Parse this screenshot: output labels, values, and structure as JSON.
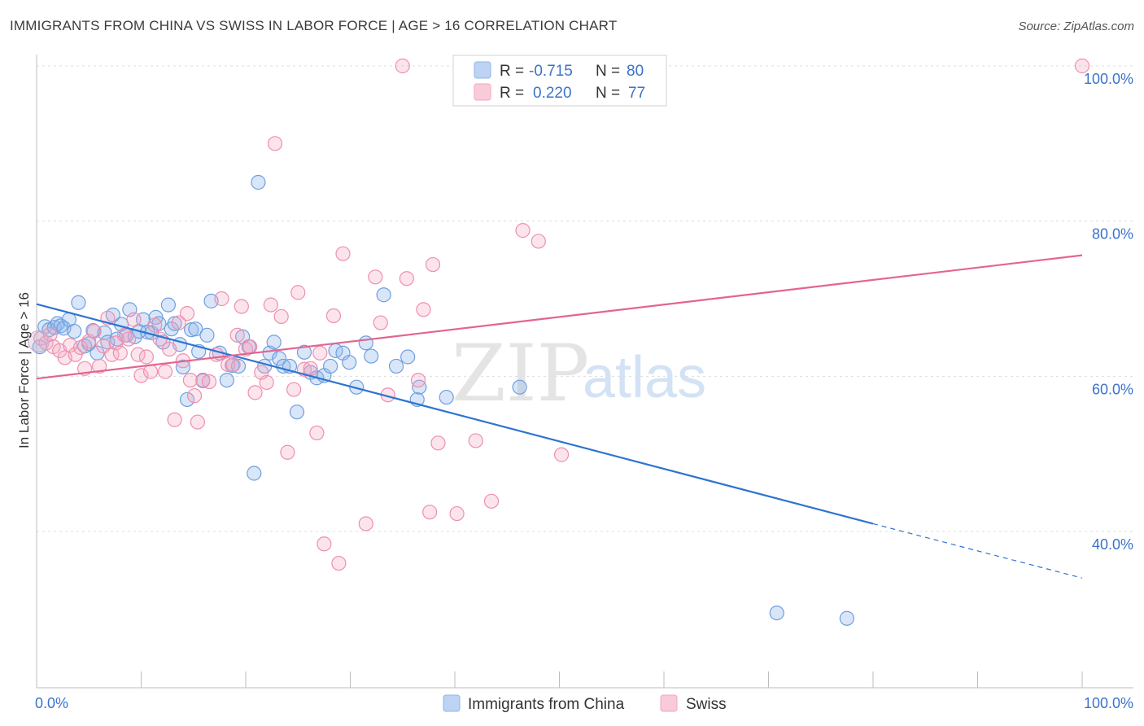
{
  "title": "IMMIGRANTS FROM CHINA VS SWISS IN LABOR FORCE | AGE > 16 CORRELATION CHART",
  "source": "Source: ZipAtlas.com",
  "watermark": {
    "zip": "ZIP",
    "atlas": "atlas"
  },
  "legend": {
    "rows": [
      {
        "r_label": "R =",
        "r_value": "-0.715",
        "n_label": "N =",
        "n_value": "80",
        "color": "#8fb6ea"
      },
      {
        "r_label": "R =",
        "r_value": "0.220",
        "n_label": "N =",
        "n_value": "77",
        "color": "#f4a6bf"
      }
    ]
  },
  "chart_data": {
    "type": "scatter",
    "xlabel": "",
    "ylabel": "In Labor Force | Age > 16",
    "xlim": [
      0,
      100
    ],
    "ylim": [
      20,
      101
    ],
    "x_tick_labels": [
      "0.0%",
      "100.0%"
    ],
    "y_ticks": [
      40,
      60,
      80,
      100
    ],
    "y_tick_labels": [
      "40.0%",
      "60.0%",
      "80.0%",
      "100.0%"
    ],
    "grid": true,
    "legend_position": "top-center",
    "series": [
      {
        "name": "Immigrants from China",
        "color": "#8fb6ea",
        "line_color": "#2f74d0",
        "trend": {
          "x0": 0,
          "y0": 69.3,
          "x1": 80,
          "y1": 41.0,
          "dashed_to_x": 100,
          "dashed_to_y": 34.0
        },
        "points": [
          [
            0.3,
            63.8
          ],
          [
            0.8,
            66.4
          ],
          [
            1.2,
            66.0
          ],
          [
            1.7,
            66.3
          ],
          [
            2.0,
            66.8
          ],
          [
            2.3,
            66.5
          ],
          [
            2.6,
            66.2
          ],
          [
            3.1,
            67.3
          ],
          [
            3.6,
            65.8
          ],
          [
            4.0,
            69.5
          ],
          [
            4.6,
            63.9
          ],
          [
            5.0,
            64.2
          ],
          [
            5.4,
            65.9
          ],
          [
            5.8,
            63.0
          ],
          [
            6.5,
            65.6
          ],
          [
            6.8,
            64.4
          ],
          [
            7.3,
            67.9
          ],
          [
            7.7,
            64.8
          ],
          [
            8.1,
            66.7
          ],
          [
            8.6,
            65.3
          ],
          [
            8.9,
            68.6
          ],
          [
            9.4,
            65.1
          ],
          [
            9.8,
            65.8
          ],
          [
            10.2,
            67.3
          ],
          [
            10.6,
            65.7
          ],
          [
            11.0,
            65.6
          ],
          [
            11.4,
            67.6
          ],
          [
            11.7,
            66.8
          ],
          [
            12.1,
            64.4
          ],
          [
            12.6,
            69.2
          ],
          [
            12.9,
            66.1
          ],
          [
            13.2,
            66.8
          ],
          [
            13.7,
            64.1
          ],
          [
            14.0,
            61.2
          ],
          [
            14.4,
            57.0
          ],
          [
            14.8,
            66.0
          ],
          [
            15.2,
            66.1
          ],
          [
            15.5,
            63.2
          ],
          [
            15.9,
            59.5
          ],
          [
            16.3,
            65.3
          ],
          [
            16.7,
            69.7
          ],
          [
            17.5,
            63.0
          ],
          [
            18.2,
            59.5
          ],
          [
            18.7,
            61.4
          ],
          [
            19.3,
            61.3
          ],
          [
            19.7,
            65.1
          ],
          [
            20.3,
            63.8
          ],
          [
            20.8,
            47.5
          ],
          [
            21.2,
            85.0
          ],
          [
            21.8,
            61.3
          ],
          [
            22.3,
            63.0
          ],
          [
            22.7,
            64.4
          ],
          [
            23.2,
            62.3
          ],
          [
            23.6,
            61.3
          ],
          [
            24.2,
            61.3
          ],
          [
            24.9,
            55.4
          ],
          [
            25.6,
            63.1
          ],
          [
            26.2,
            60.5
          ],
          [
            26.8,
            59.8
          ],
          [
            27.5,
            60.1
          ],
          [
            28.1,
            61.3
          ],
          [
            28.6,
            63.3
          ],
          [
            29.3,
            63.0
          ],
          [
            29.9,
            61.8
          ],
          [
            30.6,
            58.6
          ],
          [
            31.5,
            64.3
          ],
          [
            32.0,
            62.6
          ],
          [
            33.2,
            70.5
          ],
          [
            34.4,
            61.3
          ],
          [
            35.5,
            62.5
          ],
          [
            36.4,
            57.0
          ],
          [
            36.6,
            58.6
          ],
          [
            39.2,
            57.3
          ],
          [
            46.2,
            58.6
          ],
          [
            70.8,
            29.5
          ],
          [
            77.5,
            28.8
          ]
        ]
      },
      {
        "name": "Swiss",
        "color": "#f4a6bf",
        "line_color": "#e4648f",
        "trend": {
          "x0": 0,
          "y0": 59.7,
          "x1": 100,
          "y1": 75.6
        },
        "points": [
          [
            0.4,
            64.9
          ],
          [
            0.9,
            64.3
          ],
          [
            1.3,
            65.4
          ],
          [
            1.6,
            63.8
          ],
          [
            2.2,
            63.3
          ],
          [
            2.7,
            62.4
          ],
          [
            3.2,
            64.0
          ],
          [
            3.7,
            62.8
          ],
          [
            4.2,
            63.7
          ],
          [
            4.6,
            61.0
          ],
          [
            5.0,
            64.5
          ],
          [
            5.5,
            65.8
          ],
          [
            6.0,
            61.3
          ],
          [
            6.4,
            63.9
          ],
          [
            6.8,
            67.5
          ],
          [
            7.2,
            62.8
          ],
          [
            7.6,
            64.3
          ],
          [
            8.0,
            63.0
          ],
          [
            8.4,
            65.3
          ],
          [
            8.8,
            64.8
          ],
          [
            9.3,
            67.3
          ],
          [
            9.7,
            62.8
          ],
          [
            10.0,
            60.1
          ],
          [
            10.5,
            62.5
          ],
          [
            10.9,
            60.6
          ],
          [
            11.3,
            66.6
          ],
          [
            11.8,
            64.8
          ],
          [
            12.3,
            60.6
          ],
          [
            12.7,
            63.5
          ],
          [
            13.2,
            54.4
          ],
          [
            13.6,
            66.9
          ],
          [
            14.0,
            62.0
          ],
          [
            14.4,
            68.1
          ],
          [
            14.7,
            59.5
          ],
          [
            15.1,
            57.5
          ],
          [
            15.4,
            54.1
          ],
          [
            15.9,
            59.4
          ],
          [
            16.5,
            59.3
          ],
          [
            17.2,
            62.8
          ],
          [
            17.7,
            70.0
          ],
          [
            18.3,
            61.5
          ],
          [
            18.8,
            61.5
          ],
          [
            19.2,
            65.3
          ],
          [
            19.6,
            69.0
          ],
          [
            20.0,
            63.5
          ],
          [
            20.4,
            63.8
          ],
          [
            20.9,
            57.9
          ],
          [
            21.5,
            60.5
          ],
          [
            22.0,
            59.2
          ],
          [
            22.4,
            69.2
          ],
          [
            23.4,
            67.7
          ],
          [
            24.0,
            50.2
          ],
          [
            24.6,
            58.3
          ],
          [
            25.0,
            70.8
          ],
          [
            25.6,
            60.9
          ],
          [
            26.2,
            61.0
          ],
          [
            26.8,
            52.7
          ],
          [
            27.1,
            63.0
          ],
          [
            27.5,
            38.4
          ],
          [
            28.4,
            67.8
          ],
          [
            28.9,
            35.9
          ],
          [
            29.3,
            75.8
          ],
          [
            31.5,
            41.0
          ],
          [
            32.4,
            72.8
          ],
          [
            32.9,
            66.9
          ],
          [
            33.6,
            57.6
          ],
          [
            35.0,
            100.0
          ],
          [
            35.4,
            72.6
          ],
          [
            36.5,
            59.5
          ],
          [
            37.0,
            68.6
          ],
          [
            37.6,
            42.5
          ],
          [
            37.9,
            74.4
          ],
          [
            38.4,
            51.4
          ],
          [
            40.2,
            42.3
          ],
          [
            42.0,
            51.7
          ],
          [
            43.5,
            43.9
          ],
          [
            46.5,
            78.8
          ],
          [
            48.0,
            77.4
          ],
          [
            50.2,
            49.9
          ],
          [
            100.0,
            100.0
          ]
        ]
      }
    ],
    "extra_pink_high_point": [
      22.8,
      90.0
    ]
  }
}
